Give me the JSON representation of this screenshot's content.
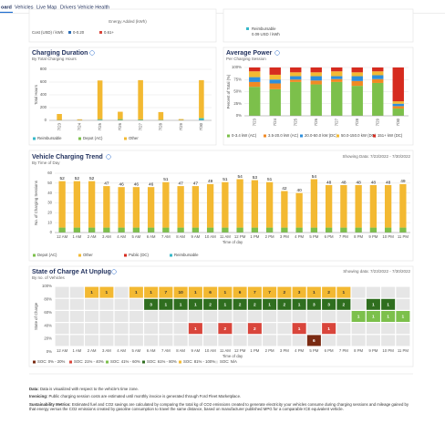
{
  "nav": {
    "items": [
      "oard",
      "Vehicles",
      "Live Map",
      "Drivers",
      "Vehicle Health"
    ]
  },
  "energy_card": {
    "axis_label": "Energy Added (kWh)",
    "cost_label": "Cost (USD) / kWh:",
    "legend": [
      {
        "name": "0-0.20",
        "color": "#2d6db5"
      },
      {
        "name": "0.61+",
        "color": "#d9453b"
      }
    ]
  },
  "reimbursable_card": {
    "legend": {
      "name": "Reimbursable",
      "color": "#36b8c9"
    },
    "rate": "0.09 USD / kWh"
  },
  "charging_duration": {
    "type": "stacked_bar",
    "title": "Charging Duration",
    "subtitle": "By Total Charging Hours",
    "y_label": "Total Hours",
    "categories": [
      "7/23",
      "7/24",
      "7/25",
      "7/26",
      "7/27",
      "7/28",
      "7/29",
      "7/30"
    ],
    "series": [
      {
        "name": "Reimbursable",
        "color": "#36b8c9",
        "values": [
          0,
          0,
          10,
          5,
          5,
          0,
          0,
          30
        ]
      },
      {
        "name": "Depot (AC)",
        "color": "#7cc04b",
        "values": [
          5,
          2,
          10,
          15,
          10,
          10,
          5,
          10
        ]
      },
      {
        "name": "Other",
        "color": "#f3b932",
        "values": [
          95,
          15,
          605,
          115,
          615,
          120,
          15,
          590
        ]
      }
    ],
    "ylim": [
      0,
      800
    ],
    "yticks": [
      0,
      200,
      400,
      600,
      800
    ],
    "grid": true
  },
  "average_power": {
    "type": "stacked_bar",
    "title": "Average Power",
    "subtitle": "Per Charging Session",
    "y_label": "Percent of Total (%)",
    "categories": [
      "7/23",
      "7/24",
      "7/25",
      "7/26",
      "7/27",
      "7/28",
      "7/29",
      "7/30"
    ],
    "series": [
      {
        "name": "0-3.4 kW (AC)",
        "color": "#7cc04b",
        "values": [
          60,
          55,
          70,
          65,
          70,
          62,
          68,
          15
        ]
      },
      {
        "name": "3.5-20.0 kW (AC)",
        "color": "#f08a24",
        "values": [
          10,
          12,
          5,
          8,
          6,
          10,
          8,
          5
        ]
      },
      {
        "name": "20.0-50.0 kW (DC)",
        "color": "#2e8fdc",
        "values": [
          10,
          8,
          7,
          9,
          6,
          10,
          8,
          5
        ]
      },
      {
        "name": "50.0-150.0 kW (DC)",
        "color": "#f3b932",
        "values": [
          12,
          10,
          8,
          8,
          10,
          8,
          8,
          5
        ]
      },
      {
        "name": "151+ kW (DC)",
        "color": "#d62b1f",
        "values": [
          8,
          15,
          10,
          10,
          8,
          10,
          8,
          70
        ]
      }
    ],
    "ylim": [
      0,
      100
    ],
    "yticks": [
      {
        "value": 0,
        "label": "0%"
      },
      {
        "value": 25,
        "label": "25%"
      },
      {
        "value": 50,
        "label": "50%"
      },
      {
        "value": 75,
        "label": "75%"
      },
      {
        "value": 100,
        "label": "100%"
      }
    ],
    "grid": true
  },
  "trend": {
    "type": "stacked_bar",
    "title": "Vehicle Charging Trend",
    "subtitle": "By Time of Day",
    "date_range": "Showing Data: 7/23/2022 - 7/30/2022",
    "y_label": "No. of Charging Sessions",
    "x_label": "Time of day",
    "categories": [
      "12 AM",
      "1 AM",
      "2 AM",
      "3 AM",
      "4 AM",
      "5 AM",
      "6 AM",
      "7 AM",
      "8 AM",
      "9 AM",
      "10 AM",
      "11 AM",
      "12 PM",
      "1 PM",
      "2 PM",
      "3 PM",
      "4 PM",
      "5 PM",
      "6 PM",
      "7 PM",
      "8 PM",
      "9 PM",
      "10 PM",
      "11 PM"
    ],
    "series": [
      {
        "name": "Depot (AC)",
        "color": "#7cc04b",
        "values": [
          5,
          5,
          5,
          5,
          5,
          5,
          5,
          5,
          5,
          5,
          5,
          5,
          5,
          5,
          5,
          5,
          5,
          5,
          5,
          5,
          5,
          5,
          5,
          5
        ]
      },
      {
        "name": "Other",
        "color": "#f3b932",
        "values": [
          47,
          47,
          47,
          42,
          41,
          41,
          41,
          46,
          42,
          42,
          44,
          46,
          49,
          48,
          46,
          37,
          35,
          49,
          43,
          43,
          43,
          43,
          43,
          44
        ]
      },
      {
        "name": "Public (DC)",
        "color": "#d62b1f",
        "values": [
          0,
          0,
          0,
          0,
          0,
          0,
          0,
          0,
          0,
          0,
          0,
          0,
          0,
          0,
          0,
          0,
          0,
          0,
          0,
          0,
          0,
          0,
          0,
          0
        ]
      },
      {
        "name": "Reimbursable",
        "color": "#36b8c9",
        "values": [
          0,
          0,
          0,
          0,
          0,
          0,
          0,
          0,
          0,
          0,
          0,
          0,
          0,
          0,
          0,
          0,
          0,
          0,
          0,
          0,
          0,
          0,
          0,
          0
        ]
      }
    ],
    "totals": [
      52,
      52,
      52,
      47,
      46,
      46,
      46,
      51,
      47,
      47,
      49,
      51,
      54,
      53,
      51,
      42,
      40,
      54,
      48,
      48,
      48,
      48,
      48,
      49
    ],
    "ylim": [
      0,
      60
    ],
    "yticks": [
      0,
      10,
      20,
      30,
      40,
      50,
      60
    ],
    "grid": true
  },
  "soc": {
    "type": "heatmap",
    "title": "State of Charge At Unplug",
    "subtitle": "By no. of Vehicles",
    "date_range": "Showing data: 7/23/2022 - 7/30/2022",
    "y_label": "State of Charge",
    "x_label": "Time of day",
    "y_tick_labels": [
      "0%",
      "20%",
      "40%",
      "60%",
      "80%",
      "100%"
    ],
    "categories": [
      "12 AM",
      "1 AM",
      "2 AM",
      "3 AM",
      "4 AM",
      "5 AM",
      "6 AM",
      "7 AM",
      "8 AM",
      "9 AM",
      "10 AM",
      "11 AM",
      "12 PM",
      "1 PM",
      "2 PM",
      "3 PM",
      "4 PM",
      "5 PM",
      "6 PM",
      "7 PM",
      "8 PM",
      "9 PM",
      "10 PM",
      "11 PM"
    ],
    "series": [
      {
        "name": "SOC: 0% - 20%",
        "color": "#7a2a12",
        "values": [
          null,
          null,
          null,
          null,
          null,
          null,
          null,
          null,
          null,
          null,
          null,
          null,
          null,
          null,
          null,
          null,
          null,
          6,
          null,
          null,
          null,
          null,
          null,
          null
        ]
      },
      {
        "name": "SOC: 21% - 40%",
        "color": "#d9453b",
        "values": [
          null,
          null,
          null,
          null,
          null,
          null,
          null,
          null,
          null,
          1,
          null,
          2,
          null,
          2,
          null,
          null,
          1,
          null,
          1,
          null,
          null,
          null,
          null,
          null
        ]
      },
      {
        "name": "SOC: 41% - 60%",
        "color": "#7cc04b",
        "values": [
          null,
          null,
          null,
          null,
          null,
          null,
          null,
          null,
          null,
          null,
          null,
          null,
          null,
          null,
          null,
          null,
          null,
          null,
          null,
          null,
          1,
          1,
          1,
          1
        ]
      },
      {
        "name": "SOC: 61% - 80%",
        "color": "#2f6e1f",
        "values": [
          null,
          null,
          null,
          null,
          null,
          null,
          3,
          1,
          1,
          1,
          2,
          1,
          2,
          2,
          1,
          2,
          1,
          3,
          3,
          2,
          null,
          1,
          1,
          null
        ]
      },
      {
        "name": "SOC: 81% - 100%",
        "color": "#f3b932",
        "values": [
          null,
          null,
          1,
          1,
          null,
          1,
          1,
          7,
          10,
          1,
          6,
          1,
          6,
          7,
          7,
          2,
          3,
          1,
          2,
          1,
          null,
          null,
          null,
          null
        ]
      }
    ],
    "na": {
      "name": "SOC: N/A",
      "color": "#e6e6e6"
    }
  },
  "notes": [
    {
      "label": "Data:",
      "text": "Data is visualized with respect to the vehicle's time zone."
    },
    {
      "label": "Invoicing:",
      "text": "Public charging session costs are estimated until monthly invoice is generated through Ford Fleet Marketplace."
    },
    {
      "label": "Sustainability Metrics:",
      "text": "Estimated fuel and CO2 savings are calculated by comparing the total kg of CO2 emissions created to generate electricity your vehicles consume during charging sessions and mileage gained by that energy versus the CO2 emissions created by gasoline consumption to travel the same distance, based on manufacturer published MPG for a comparable ICE equivalent vehicle."
    }
  ]
}
